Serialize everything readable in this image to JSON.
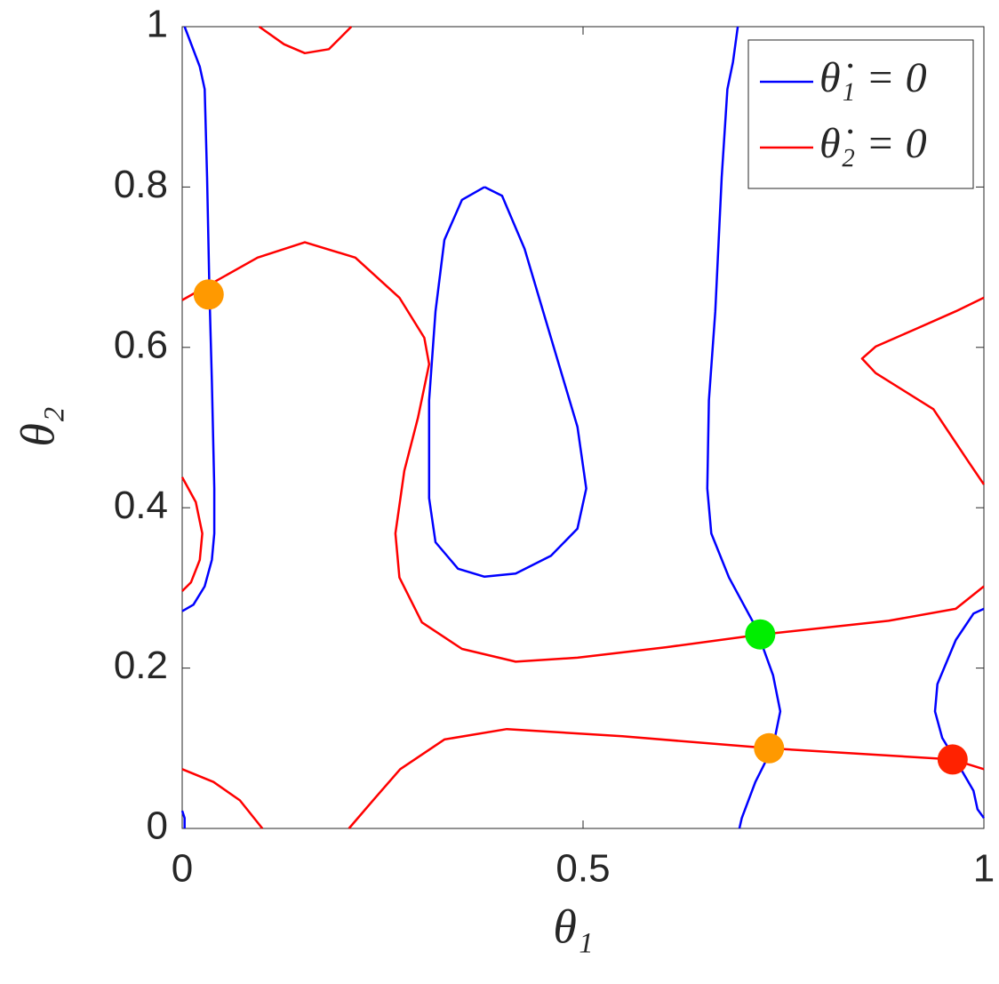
{
  "chart_data": {
    "type": "line",
    "x_label": "θ₁",
    "y_label": "θ₂",
    "xlim": [
      0,
      1
    ],
    "ylim": [
      0,
      1
    ],
    "xticks": [
      0,
      0.5,
      1
    ],
    "yticks": [
      0,
      0.2,
      0.4,
      0.6,
      0.8,
      1
    ],
    "grid": false,
    "legend": "upper right",
    "series": [
      {
        "name": "θ̇₁ = 0",
        "color": "#0000ff",
        "x": [
          0.003,
          0.022,
          0.028,
          0.031,
          0.034,
          0.037,
          0.04,
          0.04,
          0.037,
          0.028,
          0.014,
          0,
          null,
          0,
          0.003,
          0.003,
          null,
          0.377,
          0.349,
          0.327,
          0.316,
          0.308,
          0.308,
          0.316,
          0.344,
          0.377,
          0.416,
          0.46,
          0.493,
          0.504,
          0.493,
          0.46,
          0.427,
          0.399,
          0.377,
          null,
          0.693,
          0.687,
          0.68,
          0.673,
          0.665,
          0.657,
          0.655,
          0.66,
          0.682,
          0.715,
          0.737,
          0.746,
          0.737,
          0.715,
          0.698,
          0.695,
          null,
          1.0,
          0.987,
          0.965,
          0.942,
          0.939,
          0.948,
          0.965,
          0.987,
          0.992,
          1.0
        ],
        "values": [
          1.0,
          0.95,
          0.922,
          0.812,
          0.667,
          0.557,
          0.424,
          0.368,
          0.335,
          0.302,
          0.279,
          0.271,
          null,
          0.022,
          0.013,
          0,
          null,
          0.8,
          0.784,
          0.734,
          0.645,
          0.534,
          0.412,
          0.357,
          0.324,
          0.314,
          0.318,
          0.34,
          0.374,
          0.424,
          0.501,
          0.612,
          0.723,
          0.789,
          0.8,
          null,
          1.0,
          0.956,
          0.922,
          0.812,
          0.645,
          0.534,
          0.424,
          0.368,
          0.313,
          0.252,
          0.191,
          0.146,
          0.102,
          0.058,
          0.013,
          0,
          null,
          0.274,
          0.268,
          0.235,
          0.18,
          0.146,
          0.113,
          0.085,
          0.047,
          0.024,
          0.013
        ]
      },
      {
        "name": "θ̇₂ = 0",
        "color": "#ff0000",
        "x": [
          0.096,
          0.127,
          0.153,
          0.183,
          0.211,
          null,
          0,
          0.039,
          0.094,
          0.153,
          0.216,
          0.271,
          0.302,
          0.308,
          0.294,
          0.277,
          0.266,
          0.271,
          0.299,
          0.349,
          0.416,
          0.493,
          0.604,
          0.715,
          0.881,
          0.965,
          1.0,
          null,
          0,
          0.039,
          0.072,
          0.1,
          null,
          0.208,
          0.238,
          0.272,
          0.327,
          0.405,
          0.549,
          0.732,
          0.961,
          1.0,
          null,
          0,
          0.017,
          0.025,
          0.022,
          0.011,
          0,
          null,
          1.0,
          0.965,
          0.915,
          0.865,
          0.848,
          0.865,
          0.937,
          0.959,
          0.981,
          1.0
        ],
        "values": [
          1.0,
          0.978,
          0.967,
          0.972,
          1.0,
          null,
          0.659,
          0.681,
          0.712,
          0.731,
          0.712,
          0.662,
          0.612,
          0.579,
          0.512,
          0.446,
          0.368,
          0.313,
          0.257,
          0.224,
          0.208,
          0.213,
          0.226,
          0.241,
          0.259,
          0.274,
          0.302,
          null,
          0.074,
          0.058,
          0.035,
          0,
          null,
          0,
          0.035,
          0.074,
          0.111,
          0.124,
          0.115,
          0.1,
          0.086,
          0.074,
          null,
          0.438,
          0.407,
          0.368,
          0.335,
          0.307,
          0.296,
          null,
          0.662,
          0.645,
          0.623,
          0.601,
          0.586,
          0.568,
          0.523,
          0.49,
          0.457,
          0.429
        ]
      }
    ],
    "markers": {
      "x": [
        0.033,
        0.721,
        0.732,
        0.961
      ],
      "values": [
        0.666,
        0.242,
        0.1,
        0.086
      ],
      "colors": [
        "#ff9900",
        "#00ee00",
        "#ff9900",
        "#ff2200"
      ]
    }
  }
}
